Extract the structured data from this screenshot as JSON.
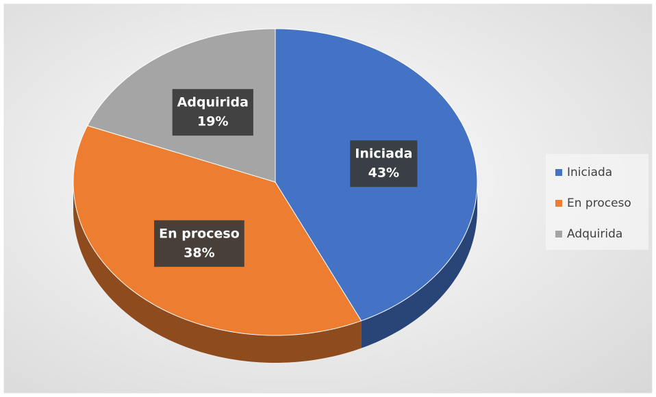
{
  "chart_data": {
    "type": "pie",
    "categories": [
      "Iniciada",
      "En proceso",
      "Adquirida"
    ],
    "values": [
      43,
      38,
      19
    ],
    "value_labels": [
      "43%",
      "38%",
      "19%"
    ],
    "colors": [
      "#4472c4",
      "#ed7d31",
      "#a5a5a5"
    ],
    "legend": "right",
    "three_d": true
  }
}
